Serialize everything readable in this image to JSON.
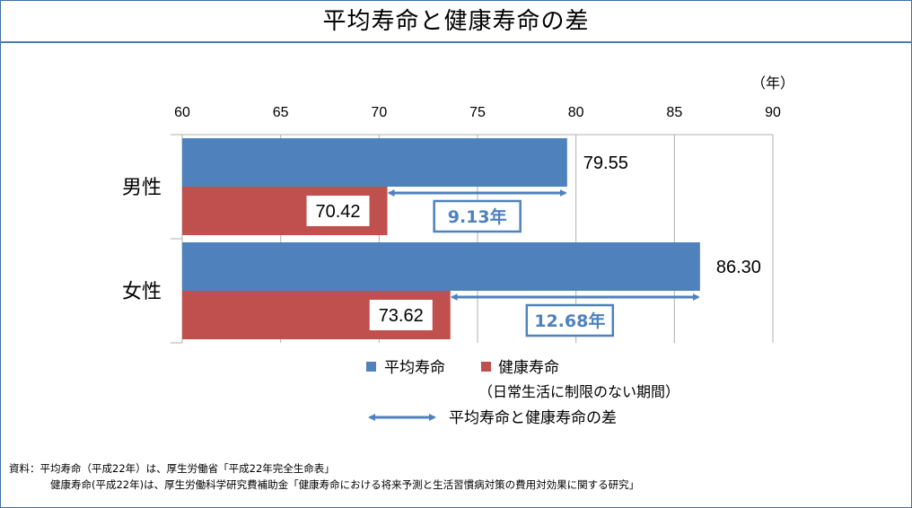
{
  "title": "平均寿命と健康寿命の差",
  "colors": {
    "avg": "#4f81bd",
    "healthy": "#c0504d",
    "diff": "#4f81bd",
    "frame": "#3f6fa8"
  },
  "chart_data": {
    "type": "bar",
    "orientation": "horizontal",
    "xlim": [
      60,
      90
    ],
    "ticks": [
      "60",
      "65",
      "70",
      "75",
      "80",
      "85",
      "90"
    ],
    "unit_label": "（年）",
    "grid": true,
    "categories": [
      "男性",
      "女性"
    ],
    "series": [
      {
        "name": "平均寿命",
        "values": [
          79.55,
          86.3
        ],
        "labels": [
          "79.55",
          "86.30"
        ]
      },
      {
        "name": "健康寿命",
        "values": [
          70.42,
          73.62
        ],
        "labels": [
          "70.42",
          "73.62"
        ]
      }
    ],
    "differences": [
      {
        "category": "男性",
        "value": 9.13,
        "label": "9.13年"
      },
      {
        "category": "女性",
        "value": 12.68,
        "label": "12.68年"
      }
    ],
    "legend": {
      "avg": "平均寿命",
      "healthy": "健康寿命",
      "healthy_note": "（日常生活に制限のない期間）",
      "diff": "平均寿命と健康寿命の差",
      "placement": "bottom"
    }
  },
  "footnote": {
    "line1": "資料：平均寿命（平成22年）は、厚生労働省「平成22年完全生命表」",
    "line2": "健康寿命(平成22年)は、厚生労働科学研究費補助金「健康寿命における将来予測と生活習慣病対策の費用対効果に関する研究」"
  }
}
